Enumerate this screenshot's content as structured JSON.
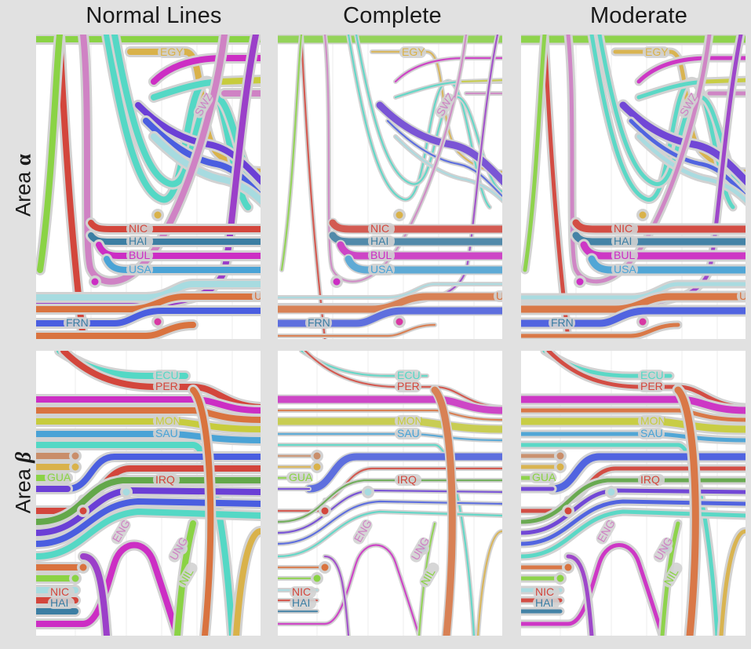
{
  "columns": {
    "c0": "Normal Lines",
    "c1": "Complete",
    "c2": "Moderate"
  },
  "rows": {
    "r0": {
      "prefix": "Area ",
      "symbol": "α"
    },
    "r1": {
      "prefix": "Area ",
      "symbol": "β"
    }
  },
  "colors": {
    "red": "#d3463c",
    "steel": "#3c7ea3",
    "magenta": "#cc2ec4",
    "sky": "#4aa3d6",
    "orange": "#d9733f",
    "pink": "#d838a3",
    "violet": "#6b3fd6",
    "teal": "#54d8c5",
    "lime": "#8ad345",
    "gold": "#d9b24a",
    "olive": "#c7cc3d",
    "lav": "#cf82c4",
    "blue": "#4a5ee0",
    "green": "#63a84a",
    "paleblue": "#a7dbe0",
    "tan": "#c98e6a",
    "purple": "#9b3fc9",
    "halo": "#d2d2d2"
  },
  "alpha_labels": [
    "NIC",
    "HAI",
    "BUL",
    "USA",
    "FRN",
    "EGY",
    "SWZ",
    "U"
  ],
  "beta_labels": [
    "ECU",
    "PER",
    "MON",
    "SAU",
    "GUA",
    "IRQ",
    "NIC",
    "HAI",
    "ENG",
    "UNG",
    "NIL"
  ]
}
